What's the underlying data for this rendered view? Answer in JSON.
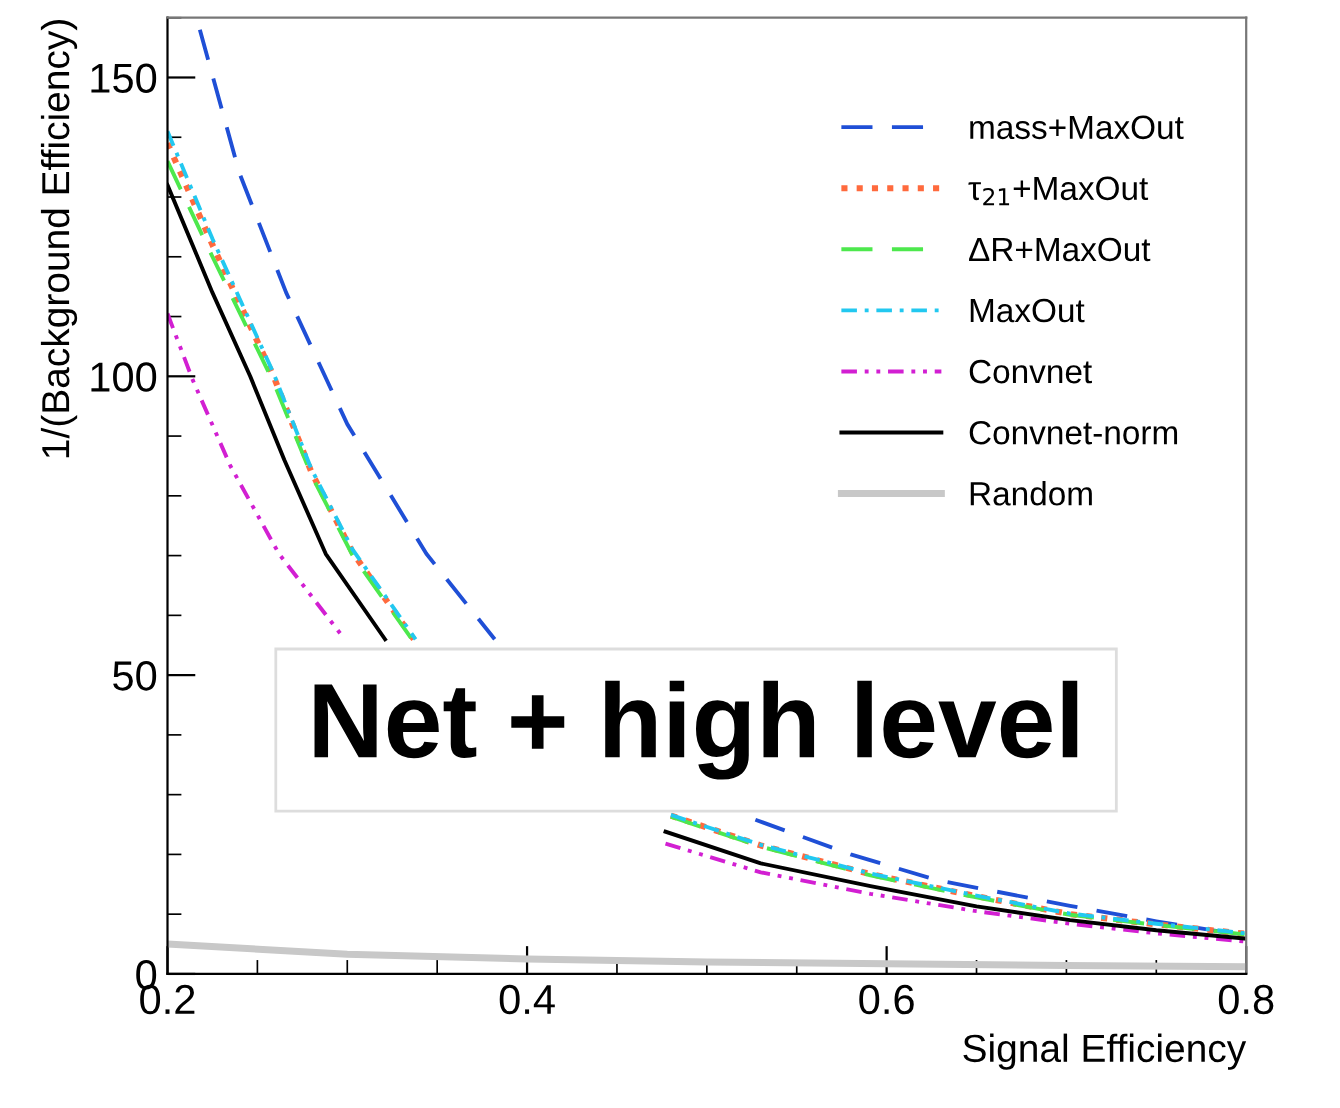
{
  "chart_data": {
    "type": "line",
    "xlabel": "Signal Efficiency",
    "ylabel": "1/(Background Efficiency)",
    "xlim": [
      0.2,
      0.8
    ],
    "ylim": [
      0,
      160
    ],
    "xticks": [
      0.2,
      0.4,
      0.6,
      0.8
    ],
    "yticks": [
      0,
      50,
      100,
      150
    ],
    "grid": false,
    "legend": "top right",
    "annotations": [
      "Net + high level"
    ],
    "series": [
      {
        "name": "mass+MaxOut",
        "color": "#1f4fd6",
        "line_style": "dashed",
        "x": [
          0.218,
          0.24,
          0.266,
          0.3,
          0.344,
          0.382,
          0.45,
          0.527,
          0.58,
          0.628,
          0.702,
          0.75,
          0.8
        ],
        "values": [
          158,
          134,
          114,
          92,
          70.3,
          56,
          null,
          25.8,
          20,
          15.7,
          11.4,
          8.8,
          6.4
        ]
      },
      {
        "name": "τ$_{21}$+MaxOut",
        "color": "#ff6a3d",
        "line_style": "dotted",
        "x": [
          0.2,
          0.225,
          0.259,
          0.28,
          0.303,
          0.337,
          0.4,
          0.48,
          0.53,
          0.591,
          0.65,
          0.702,
          0.75,
          0.8
        ],
        "values": [
          139,
          122,
          100,
          84,
          70.5,
          56,
          null,
          26.5,
          21.5,
          16.7,
          13,
          10,
          8.3,
          6.7
        ]
      },
      {
        "name": "ΔR+MaxOut",
        "color": "#4de84d",
        "line_style": "dashed",
        "x": [
          0.2,
          0.225,
          0.259,
          0.28,
          0.303,
          0.336,
          0.4,
          0.48,
          0.53,
          0.591,
          0.65,
          0.702,
          0.75,
          0.8
        ],
        "values": [
          136,
          120,
          99,
          83.5,
          70,
          56,
          null,
          26.3,
          21.3,
          16.5,
          12.8,
          9.9,
          8.2,
          6.6
        ]
      },
      {
        "name": "MaxOut",
        "color": "#22c8f0",
        "line_style": "dashdot",
        "x": [
          0.2,
          0.225,
          0.259,
          0.28,
          0.303,
          0.338,
          0.4,
          0.48,
          0.53,
          0.591,
          0.65,
          0.702,
          0.75,
          0.8
        ],
        "values": [
          141,
          123,
          100.5,
          84.5,
          71,
          56,
          null,
          26.6,
          21.6,
          16.8,
          13.1,
          10.1,
          8.4,
          6.8
        ]
      },
      {
        "name": "Convnet",
        "color": "#d21fd2",
        "line_style": "dashdotdot",
        "x": [
          0.2,
          0.214,
          0.235,
          0.262,
          0.296,
          0.4,
          0.477,
          0.53,
          0.591,
          0.65,
          0.702,
          0.75,
          0.8
        ],
        "values": [
          110.5,
          99.4,
          85,
          70.3,
          57,
          null,
          21.8,
          17,
          13.4,
          10.5,
          8.4,
          6.8,
          5.4
        ]
      },
      {
        "name": "Convnet-norm",
        "color": "#000000",
        "line_style": "solid",
        "x": [
          0.2,
          0.225,
          0.246,
          0.265,
          0.288,
          0.321,
          0.4,
          0.477,
          0.53,
          0.591,
          0.65,
          0.702,
          0.75,
          0.8
        ],
        "values": [
          132,
          114,
          100,
          86,
          70.3,
          56,
          null,
          23.8,
          18.5,
          14.7,
          11.3,
          9,
          7.3,
          5.9
        ]
      },
      {
        "name": "Random",
        "color": "#c8c8c8",
        "line_style": "solid",
        "x": [
          0.2,
          0.3,
          0.4,
          0.5,
          0.6,
          0.7,
          0.8
        ],
        "values": [
          5,
          3.3,
          2.5,
          2.0,
          1.7,
          1.4,
          1.2
        ]
      }
    ]
  }
}
